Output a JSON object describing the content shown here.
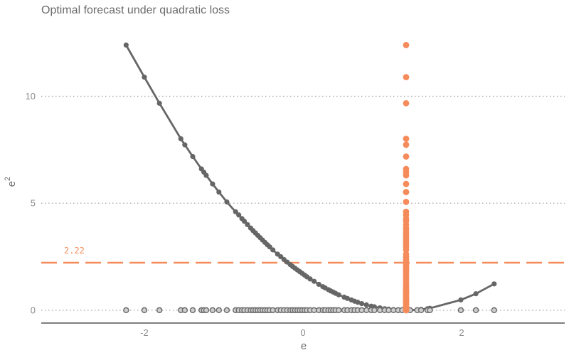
{
  "chart_data": {
    "type": "scatter",
    "title": "Optimal forecast under quadratic loss",
    "xlabel": "e",
    "ylabel": "e",
    "ylabel_superscript": "2",
    "xlim": [
      -3.3,
      3.3
    ],
    "ylim": [
      -0.6,
      13.5
    ],
    "x_ticks": [
      -2,
      0,
      2
    ],
    "x_tick_labels": [
      "-2",
      "0",
      "2"
    ],
    "y_ticks": [
      0,
      5,
      10
    ],
    "y_tick_labels": [
      "0",
      "5",
      "10"
    ],
    "grid": "horizontal dotted",
    "reference_line": {
      "orientation": "horizontal",
      "y": 2.22,
      "label": "2.22",
      "color": "#f58b5a"
    },
    "colors": {
      "curve": "#666666",
      "rug_fill": "#cfcfcf",
      "rug_stroke": "#6e6e6e",
      "optimal": "#f58b5a",
      "axis": "#555555",
      "grid": "#9a9a9a"
    },
    "optimal_forecast_x": 1.3,
    "e_values": [
      -2.23,
      -2.0,
      -1.81,
      -1.54,
      -1.49,
      -1.39,
      -1.28,
      -1.25,
      -1.22,
      -1.14,
      -1.06,
      -0.96,
      -0.85,
      -0.81,
      -0.77,
      -0.74,
      -0.7,
      -0.66,
      -0.63,
      -0.6,
      -0.57,
      -0.54,
      -0.51,
      -0.48,
      -0.45,
      -0.42,
      -0.38,
      -0.32,
      -0.28,
      -0.24,
      -0.2,
      -0.16,
      -0.13,
      -0.1,
      -0.07,
      -0.04,
      -0.01,
      0.02,
      0.05,
      0.09,
      0.14,
      0.2,
      0.25,
      0.28,
      0.32,
      0.35,
      0.38,
      0.41,
      0.45,
      0.52,
      0.56,
      0.61,
      0.65,
      0.69,
      0.74,
      0.8,
      0.86,
      0.9,
      0.97,
      1.03,
      1.08,
      1.14,
      1.2,
      1.25,
      1.35,
      1.44,
      1.49,
      1.57,
      1.6,
      1.99,
      2.18,
      2.41
    ],
    "optimal_loss_values": [
      12.39,
      10.89,
      9.67,
      8.01,
      7.73,
      7.18,
      6.6,
      6.45,
      6.3,
      5.9,
      5.52,
      5.06,
      4.6,
      4.45,
      4.28,
      4.16,
      4.0,
      3.84,
      3.72,
      3.61,
      3.5,
      3.39,
      3.28,
      3.17,
      3.06,
      2.96,
      2.82,
      2.62,
      2.5,
      2.37,
      2.25,
      2.13,
      2.04,
      1.96,
      1.88,
      1.8,
      1.72,
      1.64,
      1.56,
      1.46,
      1.35,
      1.21,
      1.1,
      1.04,
      0.96,
      0.9,
      0.85,
      0.79,
      0.72,
      0.61,
      0.55,
      0.48,
      0.42,
      0.37,
      0.31,
      0.25,
      0.19,
      0.16,
      0.11,
      0.07,
      0.05,
      0.03,
      0.01,
      0.0,
      0.0,
      0.02,
      0.04,
      0.07,
      0.09,
      0.48,
      0.77,
      1.23
    ]
  }
}
